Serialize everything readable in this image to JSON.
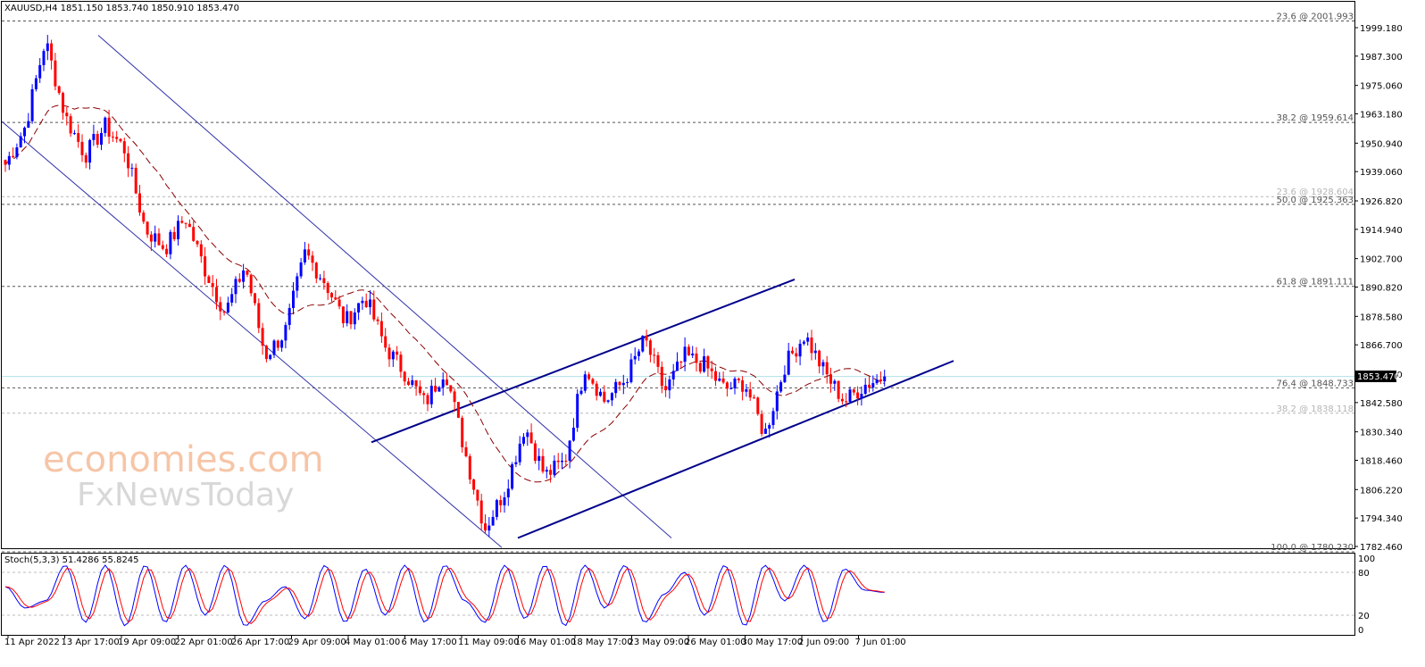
{
  "header": {
    "symbol_line": "XAUUSD,H4  1851.150 1853.740 1850.910 1853.470"
  },
  "oscillator": {
    "label": "Stoch(5,3,3) 51.4286 55.8245",
    "levels": [
      "100",
      "80",
      "20",
      "0"
    ]
  },
  "watermark": {
    "line1": "economies.com",
    "line2": "FxNewsToday"
  },
  "colors": {
    "bull": "#0000ff",
    "bear": "#ff0000",
    "grid_dash": "#888888",
    "channel": "#00008b",
    "thin_channel": "#3333aa",
    "ma": "#8b0000",
    "price_line": "#b0e0e6",
    "price_tag_bg": "#000000"
  },
  "chart_data": {
    "type": "candlestick",
    "symbol": "XAUUSD",
    "timeframe": "H4",
    "ohlc_last": {
      "open": 1851.15,
      "high": 1853.74,
      "low": 1850.91,
      "close": 1853.47
    },
    "current_price": "1853.470",
    "ylim": [
      1782.46,
      2004.0
    ],
    "y_ticks": [
      "1999.180",
      "1987.300",
      "1975.060",
      "1963.180",
      "1950.940",
      "1939.060",
      "1926.820",
      "1914.940",
      "1902.700",
      "1890.820",
      "1878.580",
      "1866.700",
      "1854.460",
      "1842.580",
      "1830.340",
      "1818.460",
      "1806.220",
      "1794.340",
      "1782.460"
    ],
    "x_ticks": [
      "11 Apr 2022",
      "13 Apr 17:00",
      "19 Apr 09:00",
      "22 Apr 01:00",
      "26 Apr 17:00",
      "29 Apr 09:00",
      "4 May 01:00",
      "6 May 17:00",
      "11 May 09:00",
      "16 May 01:00",
      "18 May 17:00",
      "23 May 09:00",
      "26 May 01:00",
      "30 May 17:00",
      "2 Jun 09:00",
      "7 Jun 01:00"
    ],
    "fib_levels": [
      {
        "label": "23.6 @ 2001.993",
        "value": 2001.993,
        "faded": false
      },
      {
        "label": "38.2 @ 1959.614",
        "value": 1959.614,
        "faded": false
      },
      {
        "label": "23.6 @ 1928.604",
        "value": 1928.604,
        "faded": true
      },
      {
        "label": "50.0 @ 1925.363",
        "value": 1925.363,
        "faded": false
      },
      {
        "label": "61.8 @ 1891.111",
        "value": 1891.111,
        "faded": false
      },
      {
        "label": "76.4 @ 1848.733",
        "value": 1848.733,
        "faded": false
      },
      {
        "label": "38.2 @ 1838.118",
        "value": 1838.118,
        "faded": true
      },
      {
        "label": "100.0 @ 1780.230",
        "value": 1780.23,
        "faded": false
      }
    ],
    "key_points": [
      1942,
      1958,
      1994,
      1962,
      1946,
      1958,
      1948,
      1915,
      1907,
      1920,
      1898,
      1880,
      1900,
      1862,
      1872,
      1905,
      1893,
      1876,
      1887,
      1866,
      1855,
      1842,
      1857,
      1822,
      1790,
      1806,
      1833,
      1812,
      1818,
      1858,
      1843,
      1852,
      1869,
      1847,
      1862,
      1858,
      1848,
      1851,
      1829,
      1858,
      1871,
      1855,
      1843,
      1850,
      1853.47
    ],
    "stoch_key_points": [
      60,
      30,
      40,
      90,
      10,
      90,
      5,
      90,
      10,
      90,
      20,
      90,
      5,
      40,
      60,
      15,
      90,
      10,
      85,
      20,
      90,
      10,
      90,
      40,
      10,
      90,
      15,
      90,
      5,
      90,
      30,
      90,
      10,
      50,
      80,
      20,
      90,
      5,
      90,
      40,
      90,
      10,
      85,
      55,
      52
    ]
  }
}
